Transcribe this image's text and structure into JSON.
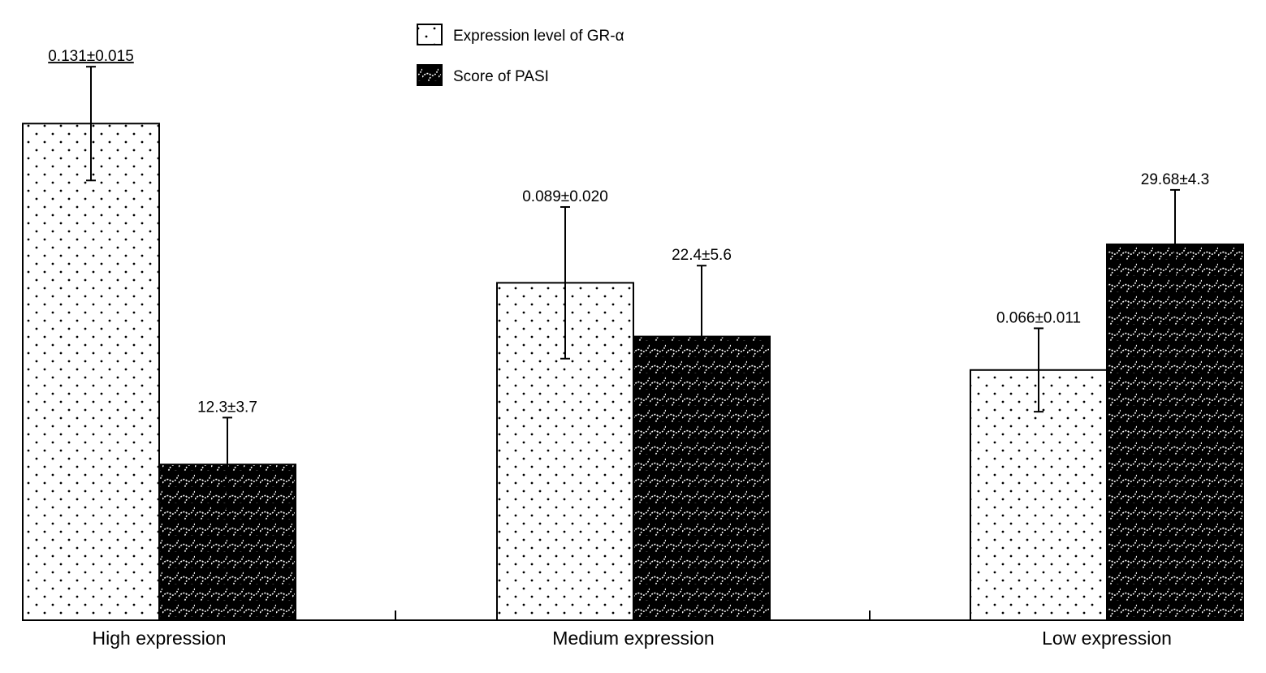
{
  "chart_data": {
    "type": "bar",
    "categories": [
      "High expression",
      "Medium expression",
      "Low expression"
    ],
    "series": [
      {
        "name": "Expression level of GR-α",
        "pattern": "dots",
        "values": [
          0.131,
          0.089,
          0.066
        ],
        "errors": [
          0.015,
          0.02,
          0.011
        ],
        "data_labels": [
          "0.131±0.015",
          "0.089±0.020",
          "0.066±0.011"
        ]
      },
      {
        "name": "Score of PASI",
        "pattern": "dark-hatch",
        "values": [
          12.3,
          22.4,
          29.68
        ],
        "errors": [
          3.7,
          5.6,
          4.3
        ],
        "data_labels": [
          "12.3±3.7",
          "22.4±5.6",
          "29.68±4.3"
        ]
      }
    ],
    "legend_position": "top-center",
    "grid": false,
    "colors": {
      "bar_fill_light": "#ffffff",
      "bar_fill_dark": "#000000",
      "outline": "#000000"
    }
  }
}
